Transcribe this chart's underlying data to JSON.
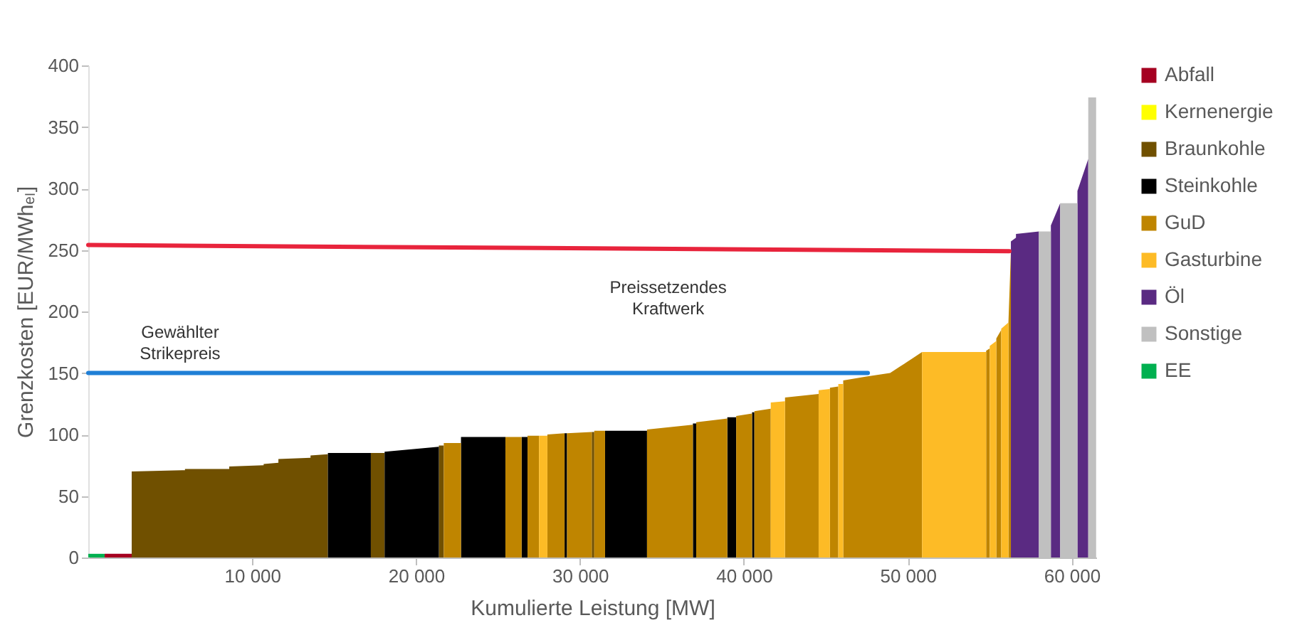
{
  "chart_data": {
    "type": "area",
    "xlabel": "Kumulierte Leistung [MW]",
    "ylabel": "Grenzkosten [EUR/MWhₑₗ]",
    "xlim": [
      0,
      61500
    ],
    "ylim": [
      0,
      400
    ],
    "xticks": [
      {
        "value": 10000,
        "label": "10 000"
      },
      {
        "value": 20000,
        "label": "20 000"
      },
      {
        "value": 30000,
        "label": "30 000"
      },
      {
        "value": 40000,
        "label": "40 000"
      },
      {
        "value": 50000,
        "label": "50 000"
      },
      {
        "value": 60000,
        "label": "60 000"
      }
    ],
    "yticks": [
      0,
      50,
      100,
      150,
      200,
      250,
      300,
      350,
      400
    ],
    "grid": false,
    "legend": "right",
    "series": [
      {
        "name": "Abfall",
        "color": "#a50021",
        "x": [
          1000,
          2650
        ],
        "values": [
          3,
          3
        ]
      },
      {
        "name": "Kernenergie",
        "color": "#ffff00"
      },
      {
        "name": "Braunkohle",
        "color": "#705000",
        "x": [
          2650,
          5900,
          5900,
          8600,
          8600,
          10700,
          10700,
          11600,
          11600,
          13560,
          13560,
          14620,
          null,
          17240,
          18080,
          null,
          21390,
          21690,
          null,
          30720,
          30870
        ],
        "values": [
          70,
          71,
          72,
          72,
          74,
          75,
          76,
          77,
          80,
          81,
          83,
          84,
          null,
          85,
          85,
          null,
          91,
          91,
          null,
          102,
          102
        ]
      },
      {
        "name": "Steinkohle",
        "color": "#000000",
        "x": [
          14620,
          17240,
          null,
          18080,
          21390,
          null,
          22740,
          25450,
          null,
          26440,
          26800,
          null,
          29060,
          29210,
          null,
          31530,
          34090,
          null,
          36890,
          37090,
          null,
          38990,
          39530,
          null,
          40500,
          40640
        ],
        "values": [
          85,
          85,
          null,
          86,
          90,
          null,
          98,
          98,
          null,
          98,
          98,
          null,
          101,
          101,
          null,
          103,
          103,
          null,
          109,
          109,
          null,
          114,
          114,
          null,
          118,
          118
        ]
      },
      {
        "name": "GuD",
        "color": "#bf8500",
        "x": [
          21690,
          22740,
          null,
          25450,
          26440,
          null,
          26800,
          27500,
          null,
          28010,
          29060,
          null,
          29210,
          30720,
          null,
          30870,
          31530,
          null,
          34090,
          36890,
          null,
          37090,
          38990,
          null,
          39530,
          40500,
          null,
          40640,
          41640,
          null,
          42510,
          44560,
          null,
          45250,
          45760,
          null,
          46060,
          47410,
          48920,
          49500,
          50300,
          50870,
          null,
          54780,
          55000,
          null,
          55400,
          55700,
          null,
          56140,
          56290
        ],
        "values": [
          93,
          93,
          null,
          98,
          98,
          null,
          99,
          99,
          null,
          100,
          101,
          null,
          101,
          102,
          null,
          103,
          103,
          null,
          104,
          108,
          null,
          110,
          113,
          null,
          115,
          117,
          null,
          119,
          121,
          null,
          130,
          133,
          null,
          138,
          139,
          null,
          144,
          147,
          150,
          155,
          162,
          167,
          null,
          168,
          170,
          null,
          178,
          185,
          null,
          191,
          249
        ]
      },
      {
        "name": "Gasturbine",
        "color": "#fdbb26",
        "x": [
          27500,
          28010,
          null,
          41640,
          42510,
          null,
          44560,
          45250,
          null,
          45760,
          46060,
          null,
          50870,
          54780,
          null,
          55000,
          55400,
          null,
          55700,
          56140
        ],
        "values": [
          99,
          99,
          null,
          126,
          127,
          null,
          136,
          137,
          null,
          141,
          141,
          null,
          167,
          167,
          null,
          172,
          176,
          null,
          186,
          191
        ]
      },
      {
        "name": "Öl",
        "color": "#5a2a82",
        "x": [
          56290,
          56600,
          56600,
          58000,
          null,
          58730,
          59300,
          null,
          60350,
          61010
        ],
        "values": [
          257,
          260,
          263,
          265,
          null,
          270,
          288,
          null,
          298,
          324
        ]
      },
      {
        "name": "Sonstige",
        "color": "#c0c0c0",
        "x": [
          58000,
          58730,
          null,
          59300,
          60350,
          null,
          61010,
          61490
        ],
        "values": [
          265,
          265,
          null,
          288,
          288,
          null,
          374,
          374
        ]
      },
      {
        "name": "EE",
        "color": "#00b050",
        "x": [
          0,
          1000
        ],
        "values": [
          3,
          3
        ]
      },
      {
        "color": "#e8243c",
        "type": "line",
        "x": [
          0,
          56200
        ],
        "values": [
          254,
          249
        ]
      },
      {
        "color": "#1f7fd6",
        "type": "line",
        "x": [
          0,
          47560
        ],
        "values": [
          150,
          150
        ]
      }
    ],
    "annotations": [
      {
        "text": "Gewählter Strikepreis",
        "x": 5600,
        "y": 150
      },
      {
        "text": "Preissetzendes Kraftwerk",
        "x": 35380,
        "y": 251
      }
    ]
  }
}
